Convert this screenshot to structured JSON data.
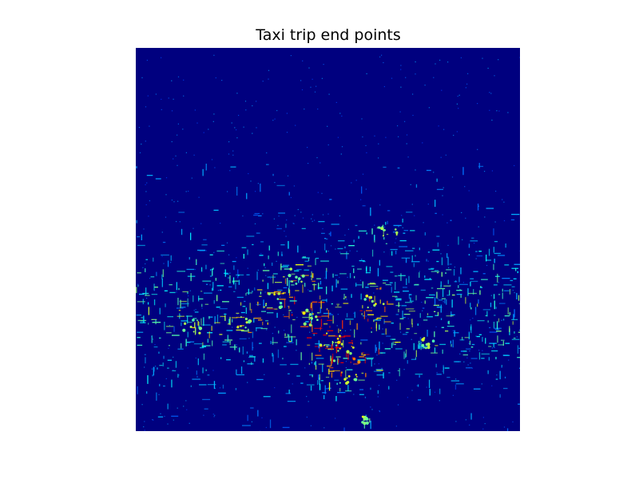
{
  "chart_data": {
    "type": "heatmap",
    "title": "Taxi trip end points",
    "xlabel": "",
    "ylabel": "",
    "axes_visible": false,
    "grid": false,
    "colormap": "jet",
    "colors": {
      "background": "#00007f",
      "low": "#0000ff",
      "mid": "#00bfff",
      "high": "#9fff5f",
      "peak": "#ffff00"
    },
    "hotspots": [
      {
        "x": 0.56,
        "y": 0.79,
        "w": 0.09,
        "h": 0.06,
        "v": 0.8
      },
      {
        "x": 0.51,
        "y": 0.76,
        "w": 0.06,
        "h": 0.05,
        "v": 0.6
      },
      {
        "x": 0.45,
        "y": 0.7,
        "w": 0.05,
        "h": 0.05,
        "v": 0.6
      },
      {
        "x": 0.36,
        "y": 0.66,
        "w": 0.05,
        "h": 0.04,
        "v": 0.5
      },
      {
        "x": 0.62,
        "y": 0.67,
        "w": 0.05,
        "h": 0.05,
        "v": 0.5
      },
      {
        "x": 0.28,
        "y": 0.72,
        "w": 0.04,
        "h": 0.04,
        "v": 0.4
      },
      {
        "x": 0.55,
        "y": 0.86,
        "w": 0.06,
        "h": 0.03,
        "v": 0.5
      },
      {
        "x": 0.65,
        "y": 0.48,
        "w": 0.06,
        "h": 0.04,
        "v": 0.3
      },
      {
        "x": 0.76,
        "y": 0.77,
        "w": 0.03,
        "h": 0.03,
        "v": 0.4
      },
      {
        "x": 0.15,
        "y": 0.73,
        "w": 0.05,
        "h": 0.04,
        "v": 0.3
      },
      {
        "x": 0.43,
        "y": 0.6,
        "w": 0.06,
        "h": 0.05,
        "v": 0.3
      },
      {
        "x": 0.6,
        "y": 0.97,
        "w": 0.02,
        "h": 0.02,
        "v": 0.4
      }
    ]
  }
}
